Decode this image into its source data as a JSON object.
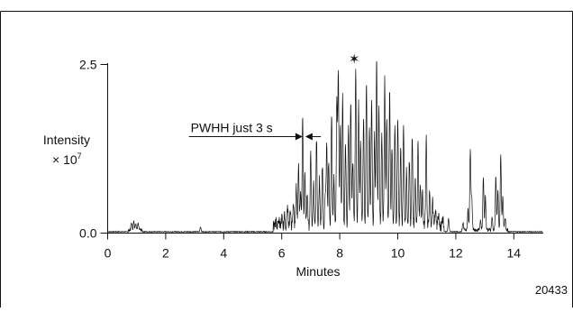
{
  "chart_data": {
    "type": "line",
    "xlabel": "Minutes",
    "ylabel": "Intensity",
    "ylabel_multiplier": "× 10",
    "ylabel_exponent": "7",
    "xlim": [
      0,
      15
    ],
    "ylim": [
      0,
      2.5
    ],
    "x_ticks": [
      0,
      2,
      4,
      6,
      8,
      10,
      12,
      14
    ],
    "y_ticks": [
      "0.0",
      "2.5"
    ],
    "grid": false,
    "annotation": {
      "text": "PWHH just 3 s",
      "x_start": 2.8,
      "x_target": 6.72,
      "x_end": 7.35,
      "y": 1.43
    },
    "star_marker": {
      "symbol": "✶",
      "x": 8.5,
      "y": 2.58
    },
    "figure_id": "20433",
    "series": [
      {
        "peaks": [
          [
            0.82,
            0.12
          ],
          [
            0.9,
            0.14
          ],
          [
            0.97,
            0.11
          ],
          [
            1.05,
            0.09
          ],
          [
            3.2,
            0.07
          ],
          [
            5.8,
            0.08
          ],
          [
            5.9,
            0.11
          ],
          [
            6.0,
            0.13
          ],
          [
            6.1,
            0.16
          ],
          [
            6.2,
            0.3
          ],
          [
            6.3,
            0.22
          ],
          [
            6.4,
            0.38
          ],
          [
            6.5,
            0.6
          ],
          [
            6.58,
            0.9
          ],
          [
            6.65,
            0.55
          ],
          [
            6.72,
            1.6
          ],
          [
            6.8,
            0.8
          ],
          [
            6.88,
            0.5
          ],
          [
            7.0,
            1.1
          ],
          [
            7.1,
            0.6
          ],
          [
            7.2,
            1.3
          ],
          [
            7.3,
            0.7
          ],
          [
            7.4,
            0.9
          ],
          [
            7.5,
            0.5
          ],
          [
            7.55,
            1.2
          ],
          [
            7.62,
            1.0
          ],
          [
            7.72,
            1.7
          ],
          [
            7.8,
            0.7
          ],
          [
            7.9,
            1.9
          ],
          [
            7.95,
            2.3
          ],
          [
            8.02,
            1.5
          ],
          [
            8.1,
            2.0
          ],
          [
            8.2,
            1.2
          ],
          [
            8.3,
            1.5
          ],
          [
            8.38,
            1.9
          ],
          [
            8.45,
            1.0
          ],
          [
            8.55,
            2.35
          ],
          [
            8.65,
            1.8
          ],
          [
            8.72,
            1.3
          ],
          [
            8.82,
            1.65
          ],
          [
            8.92,
            2.1
          ],
          [
            9.02,
            1.5
          ],
          [
            9.1,
            1.9
          ],
          [
            9.2,
            1.35
          ],
          [
            9.27,
            2.5
          ],
          [
            9.35,
            1.8
          ],
          [
            9.45,
            1.4
          ],
          [
            9.55,
            2.2
          ],
          [
            9.62,
            1.6
          ],
          [
            9.72,
            2.0
          ],
          [
            9.8,
            1.2
          ],
          [
            9.9,
            1.5
          ],
          [
            10.0,
            1.65
          ],
          [
            10.1,
            1.2
          ],
          [
            10.2,
            1.5
          ],
          [
            10.3,
            0.8
          ],
          [
            10.4,
            1.0
          ],
          [
            10.5,
            1.35
          ],
          [
            10.6,
            0.7
          ],
          [
            10.7,
            1.25
          ],
          [
            10.78,
            0.6
          ],
          [
            10.85,
            0.5
          ],
          [
            10.98,
            1.3
          ],
          [
            11.1,
            0.5
          ],
          [
            11.2,
            0.4
          ],
          [
            11.3,
            0.25
          ],
          [
            11.4,
            0.18
          ],
          [
            11.55,
            0.13
          ],
          [
            11.75,
            0.2
          ],
          [
            12.25,
            0.1
          ],
          [
            12.42,
            0.3
          ],
          [
            12.5,
            1.2
          ],
          [
            12.55,
            0.5
          ],
          [
            12.85,
            0.15
          ],
          [
            12.95,
            0.8
          ],
          [
            13.02,
            0.5
          ],
          [
            13.25,
            0.2
          ],
          [
            13.38,
            0.8
          ],
          [
            13.45,
            0.6
          ],
          [
            13.55,
            1.13
          ],
          [
            13.62,
            0.5
          ],
          [
            13.7,
            0.18
          ]
        ]
      }
    ]
  }
}
